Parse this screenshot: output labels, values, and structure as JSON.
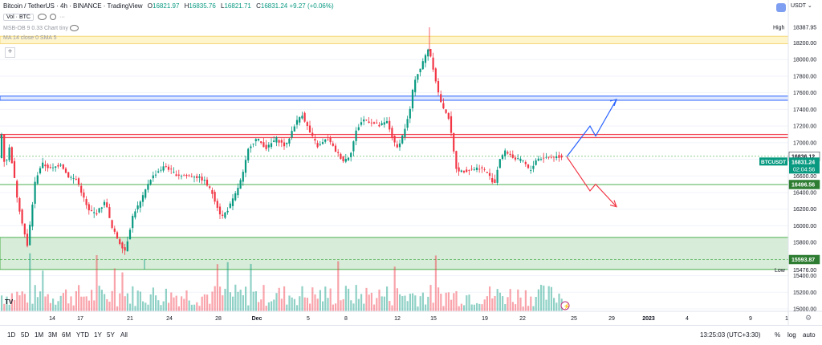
{
  "header": {
    "symbol": "Bitcoin / TetherUS · 4h · BINANCE · TradingView",
    "o_label": "O",
    "o": "16821.97",
    "h_label": "H",
    "h": "16835.76",
    "l_label": "L",
    "l": "16821.71",
    "c_label": "C",
    "c": "16831.24",
    "change": "+9.27 (+0.06%)"
  },
  "indicators": [
    {
      "name": "Vol · BTC"
    },
    {
      "name": "MSB-OB 9 0.33 Chart tiny"
    },
    {
      "name": "MA 14 close 0 SMA 5"
    }
  ],
  "currency": "USDT",
  "price_axis": {
    "ticks": [
      "18200.00",
      "18000.00",
      "17800.00",
      "17600.00",
      "17400.00",
      "17200.00",
      "17000.00",
      "16800.00",
      "16600.00",
      "16400.00",
      "16200.00",
      "16000.00",
      "15800.00",
      "15600.00",
      "15400.00",
      "15200.00",
      "15000.00"
    ],
    "high_label": "High",
    "high_value": "18387.95",
    "low_label": "Low",
    "low_value": "15476.00",
    "price_tags": [
      {
        "value": "16836.12",
        "color": "#ffffff",
        "text_color": "#131722"
      },
      {
        "value": "16496.56",
        "color": "#2e7d32",
        "text_color": "#ffffff"
      },
      {
        "value": "15593.87",
        "color": "#2e7d32",
        "text_color": "#ffffff"
      }
    ],
    "current": {
      "symbol": "BTCUSDT",
      "price": "16831.24",
      "countdown": "02:04:56",
      "color": "#089981"
    }
  },
  "time_axis": [
    "14",
    "17",
    "21",
    "24",
    "28",
    "Dec",
    "5",
    "8",
    "12",
    "15",
    "19",
    "22",
    "25",
    "29",
    "2023",
    "4",
    "9",
    "1"
  ],
  "bottom_bar": {
    "timeframes": [
      "1D",
      "5D",
      "1M",
      "3M",
      "6M",
      "YTD",
      "1Y",
      "5Y",
      "All"
    ],
    "clock": "13:25:03 (UTC+3:30)",
    "options": [
      "%",
      "log",
      "auto"
    ]
  },
  "logo": "TV",
  "colors": {
    "up": "#089981",
    "down": "#f23645",
    "zone_yellow": "#fff3c4",
    "zone_blue": "#2962ff",
    "zone_red": "#f23645",
    "zone_green": "#c8e6c9"
  },
  "chart_data": {
    "type": "candlestick",
    "interval": "4h",
    "y_range": [
      15000,
      18450
    ],
    "zones": [
      {
        "kind": "resistance",
        "from": 18190,
        "to": 18280,
        "color": "#fff3c4"
      },
      {
        "kind": "resistance",
        "from": 17510,
        "to": 17560,
        "color": "#2962ff"
      },
      {
        "kind": "resistance",
        "from": 17060,
        "to": 17100,
        "color": "#f23645"
      },
      {
        "kind": "support",
        "from": 15475,
        "to": 15860,
        "color": "#c8e6c9"
      }
    ],
    "levels": [
      16836.12,
      16496.56,
      15593.87
    ],
    "projections": [
      {
        "color": "#2962ff",
        "path": [
          [
            0,
            16831
          ],
          [
            1,
            17200
          ],
          [
            2,
            17080
          ],
          [
            3,
            17520
          ]
        ]
      },
      {
        "color": "#f23645",
        "path": [
          [
            0,
            16831
          ],
          [
            1,
            16420
          ],
          [
            2,
            16500
          ],
          [
            3,
            16230
          ]
        ]
      }
    ]
  }
}
